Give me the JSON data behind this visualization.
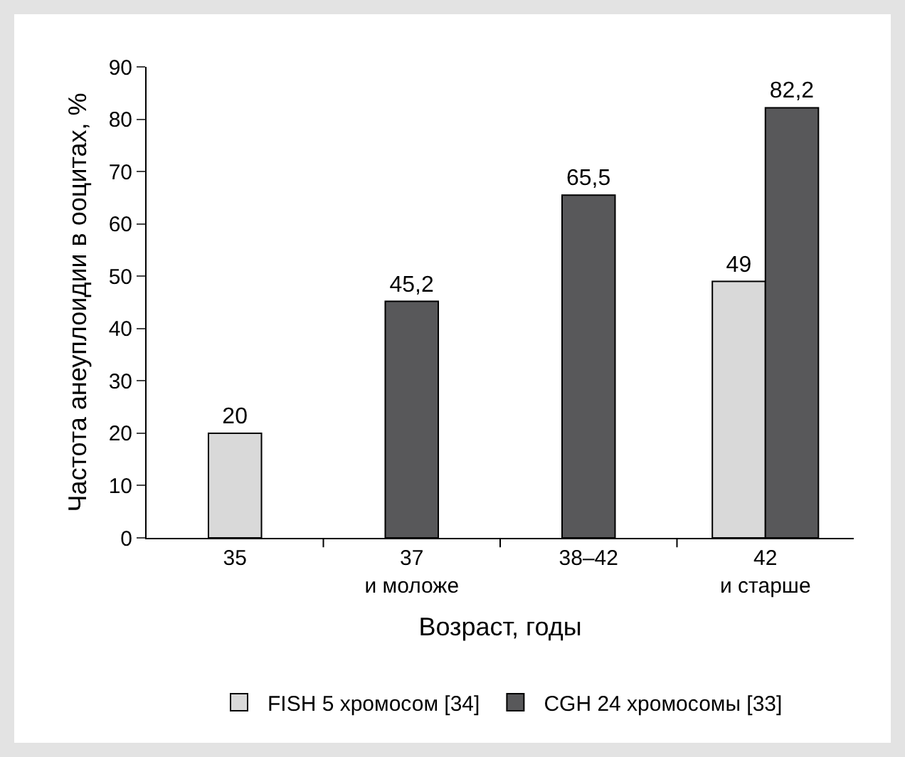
{
  "chart_data": {
    "type": "bar",
    "xlabel": "Возраст, годы",
    "ylabel": "Частота анеуплоидии в ооцитах, %",
    "categories": [
      "35",
      "37\nи моложе",
      "38–42",
      "42\nи старше"
    ],
    "series": [
      {
        "name": "FISH 5 хромосом [34]",
        "color": "#d9d9d9",
        "values": [
          20,
          null,
          null,
          49
        ],
        "value_labels": [
          "20",
          null,
          null,
          "49"
        ]
      },
      {
        "name": "CGH 24 хромосомы [33]",
        "color": "#58585a",
        "values": [
          null,
          45.2,
          65.5,
          82.2
        ],
        "value_labels": [
          null,
          "45,2",
          "65,5",
          "82,2"
        ]
      }
    ],
    "ylim": [
      0,
      90
    ],
    "yticks": [
      0,
      10,
      20,
      30,
      40,
      50,
      60,
      70,
      80,
      90
    ],
    "grid": false,
    "legend": "bottom"
  }
}
